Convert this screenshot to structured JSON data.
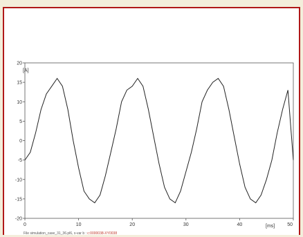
{
  "footer": {
    "path_text": "File simulation_case_31_36.pl6, x-var b :",
    "highlight_text": "c:0000038-XY0038"
  },
  "colors": {
    "frame": "#b01818",
    "line": "#222222",
    "highlight": "#c0392b"
  },
  "chart_data": {
    "type": "line",
    "title": "",
    "xlabel": "[ms]",
    "ylabel": "[A]",
    "xlim": [
      0,
      50
    ],
    "ylim": [
      -20,
      20
    ],
    "x_ticks": [
      0,
      10,
      20,
      30,
      40,
      50
    ],
    "y_ticks": [
      20,
      15,
      10,
      5,
      0,
      -5,
      -10,
      -15,
      -20
    ],
    "grid": false,
    "series": [
      {
        "x": [
          0,
          1,
          2,
          3,
          4,
          5,
          6,
          7,
          8,
          9,
          10,
          11,
          12,
          13,
          14,
          15,
          16,
          17,
          18,
          19,
          20,
          21,
          22,
          23,
          24,
          25,
          26,
          27,
          28,
          29,
          30,
          31,
          32,
          33,
          34,
          35,
          36,
          37,
          38,
          39,
          40,
          41,
          42,
          43,
          44,
          45,
          46,
          47,
          48,
          49,
          50
        ],
        "y": [
          -5,
          -3,
          2,
          8,
          12,
          14,
          16,
          14,
          8,
          0,
          -7,
          -13,
          -15,
          -16,
          -14,
          -9,
          -3,
          3,
          10,
          13,
          14,
          16,
          14,
          8,
          1,
          -6,
          -12,
          -15,
          -16,
          -13,
          -8,
          -3,
          3,
          10,
          13,
          15,
          16,
          14,
          8,
          1,
          -6,
          -12,
          -15,
          -16,
          -14,
          -10,
          -5,
          2,
          8,
          13,
          -5
        ]
      }
    ]
  }
}
